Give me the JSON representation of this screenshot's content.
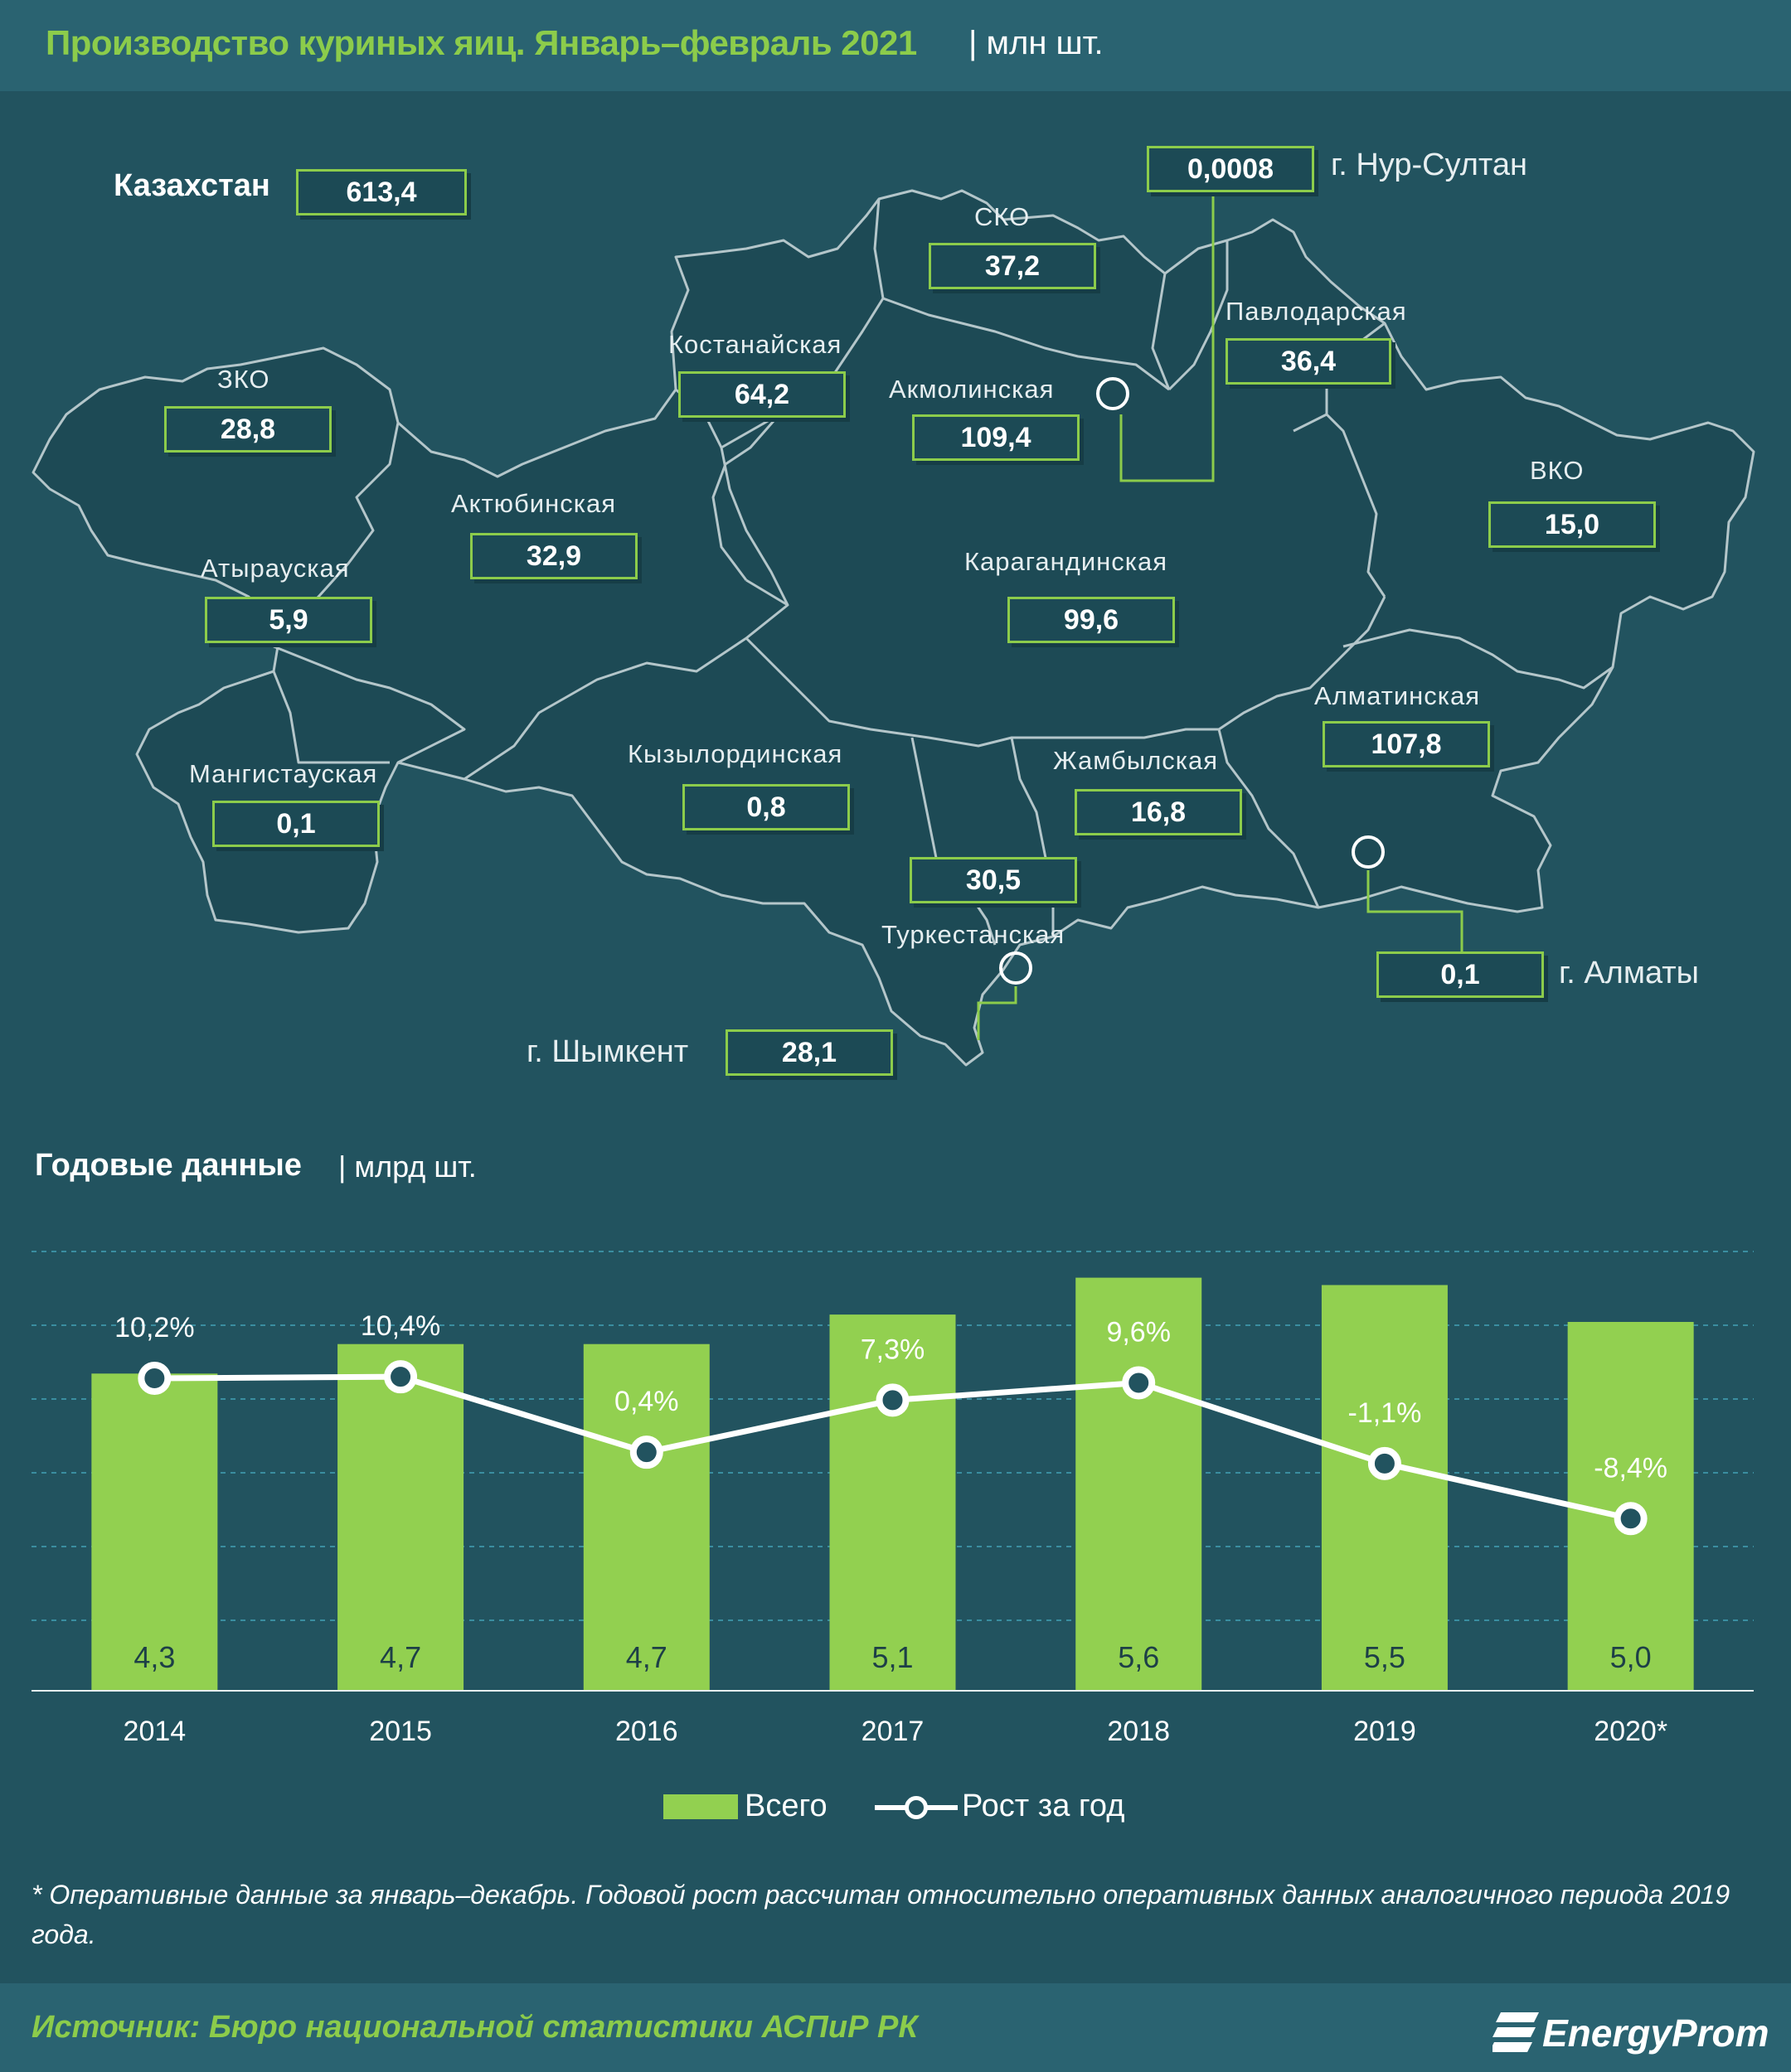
{
  "header": {
    "title": "Производство куриных яиц. Январь–февраль 2021",
    "unit": "| млн шт."
  },
  "map": {
    "total_label": "Казахстан",
    "total_value": "613,4",
    "regions": [
      {
        "name": "СКО",
        "value": "37,2"
      },
      {
        "name": "Павлодарская",
        "value": "36,4"
      },
      {
        "name": "Костанайская",
        "value": "64,2"
      },
      {
        "name": "Акмолинская",
        "value": "109,4"
      },
      {
        "name": "ЗКО",
        "value": "28,8"
      },
      {
        "name": "ВКО",
        "value": "15,0"
      },
      {
        "name": "Актюбинская",
        "value": "32,9"
      },
      {
        "name": "Атырауская",
        "value": "5,9"
      },
      {
        "name": "Карагандинская",
        "value": "99,6"
      },
      {
        "name": "Алматинская",
        "value": "107,8"
      },
      {
        "name": "Мангистауская",
        "value": "0,1"
      },
      {
        "name": "Кызылординская",
        "value": "0,8"
      },
      {
        "name": "Жамбылская",
        "value": "16,8"
      },
      {
        "name": "Туркестанская",
        "value": "30,5"
      }
    ],
    "cities": [
      {
        "name": "г. Нур-Султан",
        "value": "0,0008"
      },
      {
        "name": "г. Алматы",
        "value": "0,1"
      },
      {
        "name": "г. Шымкент",
        "value": "28,1"
      }
    ]
  },
  "annual": {
    "title": "Годовые данные",
    "unit": "| млрд шт."
  },
  "chart_data": {
    "type": "bar",
    "categories": [
      "2014",
      "2015",
      "2016",
      "2017",
      "2018",
      "2019",
      "2020*"
    ],
    "series": [
      {
        "name": "Всего",
        "type": "bar",
        "values": [
          4.3,
          4.7,
          4.7,
          5.1,
          5.6,
          5.5,
          5.0
        ],
        "labels": [
          "4,3",
          "4,7",
          "4,7",
          "5,1",
          "5,6",
          "5,5",
          "5,0"
        ]
      },
      {
        "name": "Рост за год",
        "type": "line",
        "values": [
          10.2,
          10.4,
          0.4,
          7.3,
          9.6,
          -1.1,
          -8.4
        ],
        "labels": [
          "10,2%",
          "10,4%",
          "0,4%",
          "7,3%",
          "9,6%",
          "-1,1%",
          "-8,4%"
        ]
      }
    ],
    "legend": "bottom-center",
    "grid": true,
    "colors": {
      "bar": "#92d050",
      "line": "#ffffff",
      "grid": "#3a8ea0"
    }
  },
  "legend": {
    "bar_label": "Всего",
    "line_label": "Рост за год"
  },
  "footnote": "* Оперативные данные за январь–декабрь. Годовой рост рассчитан относительно оперативных данных аналогичного периода 2019 года.",
  "source": "Источник: Бюро национальной  статистики АСПиР РК",
  "logo": "EnergyProm",
  "colors": {
    "background": "#22535f",
    "accent": "#8ccc4b",
    "map_fill": "#1d4a55",
    "map_border": "#9fb6bc"
  }
}
